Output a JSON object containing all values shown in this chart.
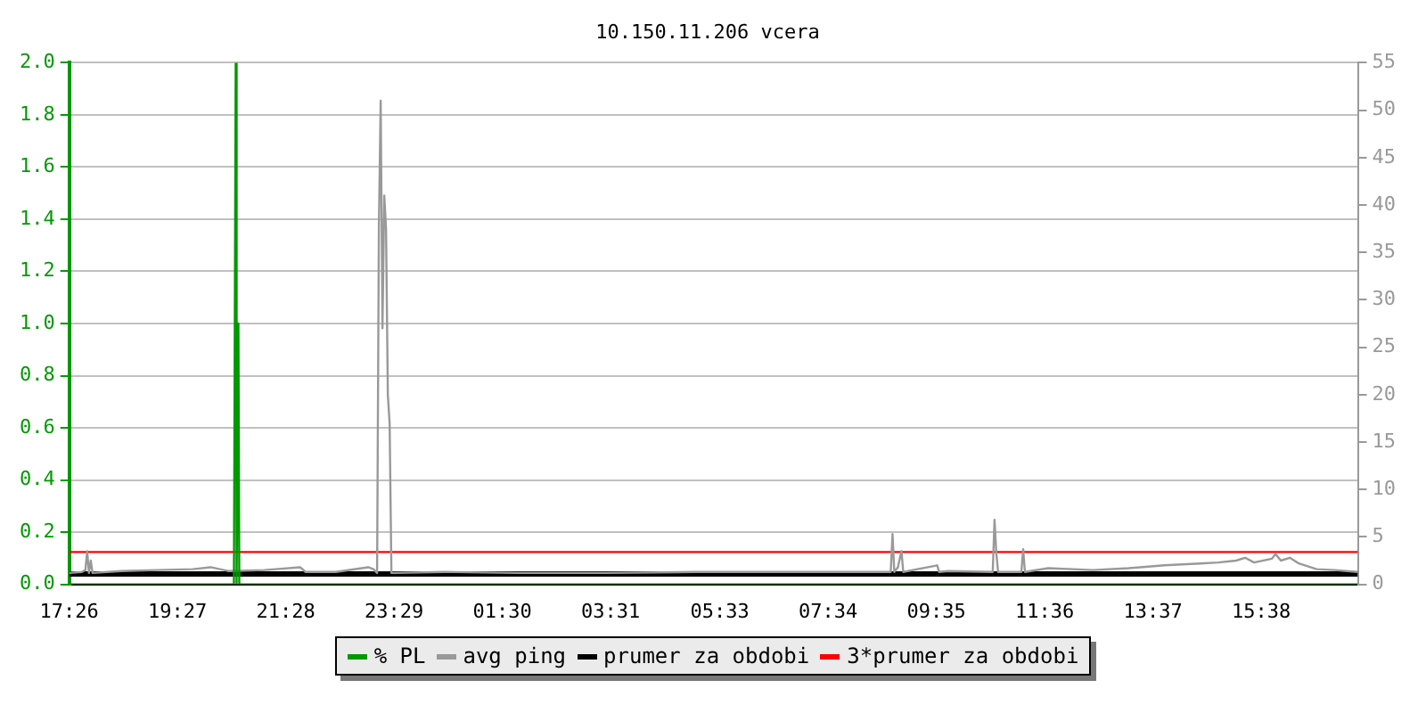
{
  "chart_data": {
    "type": "line",
    "title": "10.150.11.206 vcera",
    "xlim": [
      "--01-01T17:26",
      "--01-02T17:26"
    ],
    "xticks": [
      {
        "value": "--01-01T17:26",
        "label": "17:26"
      },
      {
        "value": "--01-01T19:27",
        "label": "19:27"
      },
      {
        "value": "--01-01T21:28",
        "label": "21:28"
      },
      {
        "value": "--01-01T23:29",
        "label": "23:29"
      },
      {
        "value": "--01-02T01:30",
        "label": "01:30"
      },
      {
        "value": "--01-02T03:31",
        "label": "03:31"
      },
      {
        "value": "--01-02T05:33",
        "label": "05:33"
      },
      {
        "value": "--01-02T07:34",
        "label": "07:34"
      },
      {
        "value": "--01-02T09:35",
        "label": "09:35"
      },
      {
        "value": "--01-02T11:36",
        "label": "11:36"
      },
      {
        "value": "--01-02T13:37",
        "label": "13:37"
      },
      {
        "value": "--01-02T15:38",
        "label": "15:38"
      }
    ],
    "ylim": [
      0,
      2
    ],
    "yticks": [
      {
        "value": 0,
        "label": "0.0"
      },
      0.2,
      0.4,
      0.6,
      0.8,
      {
        "value": 1,
        "label": "1.0"
      },
      1.2,
      1.4,
      1.6,
      1.8,
      {
        "value": 2,
        "label": "2.0"
      }
    ],
    "y2lim": [
      0,
      55
    ],
    "y2ticks": [
      0,
      5,
      10,
      15,
      20,
      25,
      30,
      35,
      40,
      45,
      50,
      55
    ],
    "grid": "y",
    "legend": "bottom",
    "series": [
      {
        "name": "% PL",
        "color": "#009900",
        "axis": "y",
        "x": [
          "--01-01T17:26",
          "--01-01T20:30",
          "--01-01T20:32",
          "--01-01T20:33",
          "--01-01T20:35",
          "--01-01T20:36",
          "--01-02T17:26"
        ],
        "values": [
          0,
          0,
          2,
          0,
          1,
          0,
          0
        ]
      },
      {
        "name": "avg ping",
        "color": "#999999",
        "axis": "y2",
        "x": [
          "--01-01T17:26",
          "--01-01T17:40",
          "--01-01T17:44",
          "--01-01T17:46",
          "--01-01T17:48",
          "--01-01T17:50",
          "--01-01T17:52",
          "--01-01T18:24",
          "--01-01T19:04",
          "--01-01T19:44",
          "--01-01T20:04",
          "--01-01T20:24",
          "--01-01T21:04",
          "--01-01T21:44",
          "--01-01T21:50",
          "--01-01T22:24",
          "--01-01T23:00",
          "--01-01T23:06",
          "--01-01T23:10",
          "--01-01T23:12",
          "--01-01T23:14",
          "--01-01T23:16",
          "--01-01T23:18",
          "--01-01T23:20",
          "--01-01T23:22",
          "--01-01T23:24",
          "--01-01T23:26",
          "--01-01T23:28",
          "--01-02T00:26",
          "--01-02T01:46",
          "--01-02T03:26",
          "--01-02T05:06",
          "--01-02T06:46",
          "--01-02T08:36",
          "--01-02T08:44",
          "--01-02T08:46",
          "--01-02T08:48",
          "--01-02T08:52",
          "--01-02T08:56",
          "--01-02T08:58",
          "--01-02T09:36",
          "--01-02T09:38",
          "--01-02T09:48",
          "--01-02T10:38",
          "--01-02T10:40",
          "--01-02T10:42",
          "--01-02T10:44",
          "--01-02T11:10",
          "--01-02T11:12",
          "--01-02T11:14",
          "--01-02T11:40",
          "--01-02T12:30",
          "--01-02T13:10",
          "--01-02T13:50",
          "--01-02T14:30",
          "--01-02T14:50",
          "--01-02T15:10",
          "--01-02T15:20",
          "--01-02T15:30",
          "--01-02T15:50",
          "--01-02T15:54",
          "--01-02T16:00",
          "--01-02T16:10",
          "--01-02T16:20",
          "--01-02T16:40",
          "--01-02T17:00",
          "--01-02T17:26"
        ],
        "values": [
          1.2,
          1.3,
          1.5,
          3.5,
          1.2,
          2.5,
          1.2,
          1.4,
          1.5,
          1.6,
          1.8,
          1.4,
          1.5,
          1.8,
          1.3,
          1.3,
          1.8,
          1.6,
          1.2,
          37.7,
          51,
          27,
          41,
          37.5,
          20,
          17,
          1.2,
          1.2,
          1.3,
          1.2,
          1.2,
          1.3,
          1.3,
          1.3,
          1.3,
          5.3,
          1.3,
          1.8,
          3.5,
          1.3,
          2.0,
          1.3,
          1.4,
          1.3,
          6.8,
          3.3,
          1.3,
          1.3,
          3.7,
          1.3,
          1.7,
          1.5,
          1.7,
          2.0,
          2.2,
          2.3,
          2.5,
          2.8,
          2.3,
          2.7,
          3.2,
          2.5,
          2.8,
          2.2,
          1.6,
          1.5,
          1.3
        ]
      },
      {
        "name": "prumer za obdobi",
        "color": "#000000",
        "axis": "y2",
        "x": [
          "--01-01T17:26",
          "--01-02T17:26"
        ],
        "values": [
          1.1,
          1.1
        ]
      },
      {
        "name": "3*prumer za obdobi",
        "color": "#ff0000",
        "axis": "y2",
        "x": [
          "--01-01T17:26",
          "--01-02T17:26"
        ],
        "values": [
          3.4,
          3.4
        ]
      }
    ]
  }
}
